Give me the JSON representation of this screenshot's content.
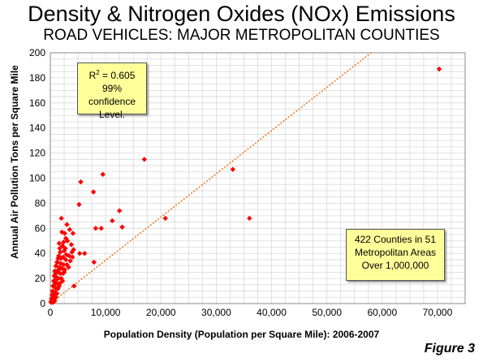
{
  "title": "Density & Nitrogen Oxides (NOx) Emissions",
  "subtitle": "ROAD VEHICLES: MAJOR METROPOLITAN COUNTIES",
  "figure_label": "Figure 3",
  "annotations": {
    "r2_base": "R",
    "r2_sup": "2",
    "r2_value": " = 0.605",
    "confidence_line1": "99% confidence",
    "confidence_line2": "Level.",
    "counties_line1": "422 Counties in 51",
    "counties_line2": "Metropolitan Areas",
    "counties_line3": "Over 1,000,000"
  },
  "colors": {
    "points": "#ff0000",
    "trend": "#f07c20",
    "annotation_bg": "#ffff99"
  },
  "chart_data": {
    "type": "scatter",
    "title": "Density & Nitrogen Oxides (NOx) Emissions",
    "subtitle": "ROAD VEHICLES: MAJOR METROPOLITAN COUNTIES",
    "xlabel": "Population Density (Population per Square Mile): 2006-2007",
    "ylabel": "Annual Air Pollution Tons per Square Mile",
    "xlim": [
      0,
      75000
    ],
    "ylim": [
      0,
      200
    ],
    "x_ticks": [
      0,
      10000,
      20000,
      30000,
      40000,
      50000,
      60000,
      70000
    ],
    "x_tick_labels": [
      "0",
      "10,000",
      "20,000",
      "30,000",
      "40,000",
      "50,000",
      "60,000",
      "70,000"
    ],
    "y_ticks": [
      0,
      20,
      40,
      60,
      80,
      100,
      120,
      140,
      160,
      180,
      200
    ],
    "y_tick_labels": [
      "0",
      "20",
      "40",
      "60",
      "80",
      "100",
      "120",
      "140",
      "160",
      "180",
      "200"
    ],
    "grid": true,
    "trendline": {
      "type": "linear",
      "x": [
        0,
        58000
      ],
      "y": [
        0,
        200
      ]
    },
    "series": [
      {
        "points": [
          [
            70300,
            187
          ],
          [
            17000,
            115
          ],
          [
            9500,
            103
          ],
          [
            5500,
            97
          ],
          [
            7800,
            89
          ],
          [
            5200,
            79
          ],
          [
            12500,
            74
          ],
          [
            11200,
            66
          ],
          [
            8200,
            60
          ],
          [
            9200,
            60
          ],
          [
            13000,
            61
          ],
          [
            20800,
            68
          ],
          [
            33000,
            107
          ],
          [
            36000,
            68
          ],
          [
            7900,
            33
          ],
          [
            4300,
            14
          ],
          [
            2000,
            68
          ],
          [
            3000,
            63
          ],
          [
            3500,
            59
          ],
          [
            4100,
            56
          ],
          [
            2600,
            56
          ],
          [
            2100,
            57
          ],
          [
            3100,
            50
          ],
          [
            1600,
            48
          ],
          [
            2200,
            46
          ],
          [
            2700,
            44
          ],
          [
            3800,
            47
          ],
          [
            4200,
            43
          ],
          [
            5300,
            40
          ],
          [
            6200,
            40
          ],
          [
            2500,
            42
          ],
          [
            1800,
            41
          ],
          [
            3400,
            38
          ],
          [
            4000,
            37
          ],
          [
            1500,
            38
          ],
          [
            2300,
            37
          ],
          [
            2800,
            35
          ],
          [
            3600,
            34
          ],
          [
            1200,
            33
          ],
          [
            1900,
            32
          ],
          [
            2400,
            31
          ],
          [
            3000,
            31
          ],
          [
            1000,
            30
          ],
          [
            1600,
            29
          ],
          [
            2100,
            28
          ],
          [
            2600,
            27
          ],
          [
            800,
            26
          ],
          [
            1300,
            25
          ],
          [
            1800,
            24
          ],
          [
            2300,
            24
          ],
          [
            700,
            22
          ],
          [
            1100,
            21
          ],
          [
            1500,
            20
          ],
          [
            2000,
            20
          ],
          [
            600,
            18
          ],
          [
            900,
            17
          ],
          [
            1300,
            16
          ],
          [
            1700,
            16
          ],
          [
            500,
            14
          ],
          [
            800,
            13
          ],
          [
            1100,
            12
          ],
          [
            1400,
            12
          ],
          [
            400,
            10
          ],
          [
            600,
            9
          ],
          [
            900,
            9
          ],
          [
            1200,
            8
          ],
          [
            300,
            7
          ],
          [
            500,
            6
          ],
          [
            700,
            6
          ],
          [
            1000,
            5
          ],
          [
            200,
            4
          ],
          [
            400,
            3
          ],
          [
            600,
            3
          ],
          [
            800,
            2
          ],
          [
            150,
            2
          ],
          [
            300,
            1
          ],
          [
            500,
            1
          ],
          [
            100,
            1
          ],
          [
            1400,
            36
          ],
          [
            1700,
            44
          ],
          [
            2900,
            39
          ],
          [
            3300,
            29
          ],
          [
            1300,
            33
          ],
          [
            2500,
            25
          ],
          [
            2200,
            18
          ],
          [
            900,
            24
          ],
          [
            1600,
            14
          ],
          [
            1900,
            36
          ],
          [
            2800,
            52
          ],
          [
            2400,
            49
          ],
          [
            1500,
            27
          ],
          [
            1000,
            19
          ],
          [
            700,
            15
          ],
          [
            3900,
            41
          ]
        ]
      }
    ]
  }
}
